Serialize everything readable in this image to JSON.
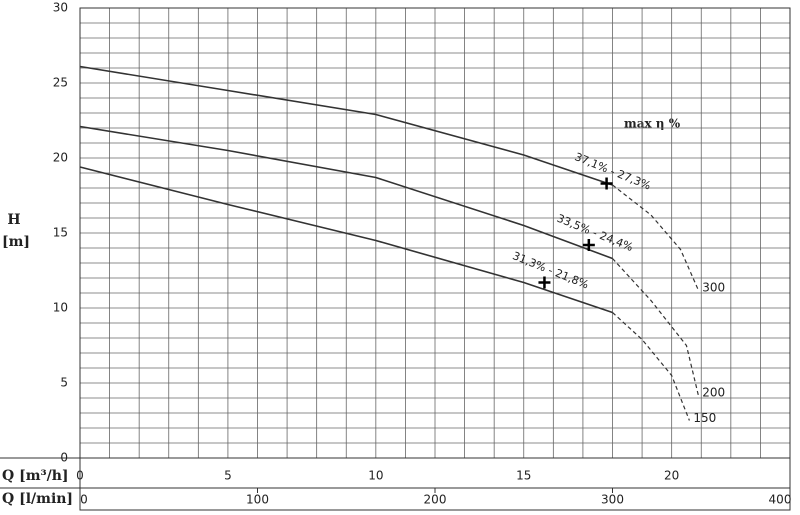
{
  "chart_data": {
    "type": "line",
    "y_label_top": "H",
    "y_label_bottom": "[m]",
    "x_label": "Q [m³/h]",
    "x2_label": "Q [l/min]",
    "annotation": "max η %",
    "xlim": [
      0,
      24
    ],
    "xticks": [
      0,
      5,
      10,
      15,
      20
    ],
    "x2lim": [
      0,
      400
    ],
    "x2ticks": [
      0,
      100,
      200,
      300,
      400
    ],
    "ylim": [
      0,
      30
    ],
    "yticks": [
      0,
      5,
      10,
      15,
      20,
      25,
      30
    ],
    "xgrid": [
      0,
      1,
      2,
      3,
      4,
      5,
      6,
      7,
      8,
      9,
      10,
      11,
      12,
      13,
      14,
      15,
      16,
      17,
      18,
      19,
      20,
      21,
      22,
      23,
      24
    ],
    "ygrid": [
      0,
      1,
      2,
      3,
      4,
      5,
      6,
      7,
      8,
      9,
      10,
      11,
      12,
      13,
      14,
      15,
      16,
      17,
      18,
      19,
      20,
      21,
      22,
      23,
      24,
      25,
      26,
      27,
      28,
      29,
      30
    ],
    "series": [
      {
        "name": "300",
        "color": "#333",
        "x": [
          0,
          5,
          10,
          15,
          18
        ],
        "values": [
          26.1,
          24.5,
          22.9,
          20.2,
          18.2
        ],
        "dashed": {
          "x": [
            18,
            19.3,
            20.3,
            20.9
          ],
          "values": [
            18.2,
            16.2,
            13.9,
            11.2
          ]
        },
        "point": {
          "x": 17.8,
          "y": 18.3,
          "label": "37,1% - 27,3%"
        }
      },
      {
        "name": "200",
        "color": "#333",
        "x": [
          0,
          5,
          10,
          15,
          18
        ],
        "values": [
          22.1,
          20.5,
          18.7,
          15.5,
          13.3
        ],
        "dashed": {
          "x": [
            18,
            19.3,
            20.5,
            20.9
          ],
          "values": [
            13.3,
            10.5,
            7.5,
            4.2
          ]
        },
        "point": {
          "x": 17.2,
          "y": 14.2,
          "label": "33,5% - 24,4%"
        }
      },
      {
        "name": "150",
        "color": "#333",
        "x": [
          0,
          5,
          10,
          15,
          18
        ],
        "values": [
          19.4,
          16.9,
          14.5,
          11.7,
          9.7
        ],
        "dashed": {
          "x": [
            18,
            19,
            20,
            20.6
          ],
          "values": [
            9.7,
            7.9,
            5.5,
            2.5
          ]
        },
        "point": {
          "x": 15.7,
          "y": 11.7,
          "label": "31,3% - 21,8%"
        }
      }
    ]
  }
}
